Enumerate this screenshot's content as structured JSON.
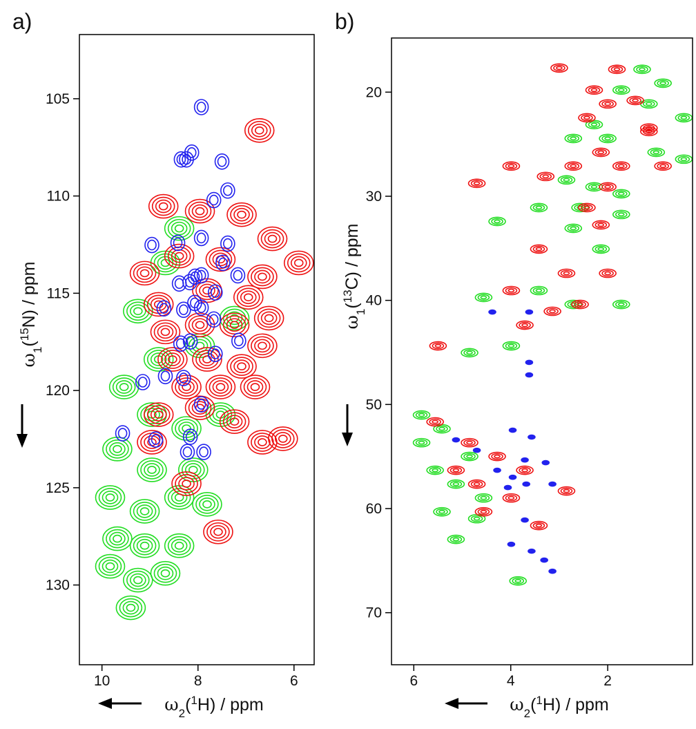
{
  "chart_data": [
    {
      "type": "contour",
      "label": "a)",
      "xlabel_parts": [
        "ω",
        "2",
        "(",
        "1",
        "H) / ppm"
      ],
      "ylabel_parts": [
        "ω",
        "1",
        "(",
        "15",
        "N) / ppm"
      ],
      "xlim": [
        10.47,
        5.58
      ],
      "ylim": [
        101.7,
        134.1
      ],
      "xticks": [
        10,
        8,
        6
      ],
      "yticks": [
        105,
        110,
        115,
        120,
        125,
        130
      ],
      "series": [
        {
          "color": "#22dd22",
          "x": [
            8.68,
            8.39,
            9.25,
            8.82,
            7.96,
            7.24,
            9.54,
            8.96,
            8.24,
            7.53,
            9.68,
            8.96,
            8.1,
            9.83,
            9.11,
            8.39,
            7.81,
            9.68,
            9.11,
            8.39,
            9.25,
            8.68,
            9.4,
            9.83
          ],
          "y": [
            113.44,
            111.67,
            115.92,
            118.4,
            117.7,
            116.28,
            119.82,
            121.24,
            121.95,
            121.24,
            123.01,
            124.08,
            124.08,
            125.5,
            126.21,
            125.5,
            125.85,
            127.62,
            127.98,
            127.98,
            129.75,
            129.4,
            131.17,
            129.04
          ]
        },
        {
          "color": "#ee1111",
          "x": [
            8.72,
            7.96,
            7.09,
            6.45,
            9.11,
            8.39,
            7.53,
            6.66,
            8.82,
            7.81,
            6.95,
            6.52,
            8.68,
            7.96,
            7.24,
            6.66,
            8.53,
            7.81,
            7.09,
            8.24,
            7.53,
            6.81,
            8.82,
            7.96,
            7.24,
            6.66,
            8.96,
            8.24,
            6.23,
            6.72,
            5.9,
            7.58
          ],
          "y": [
            110.53,
            110.78,
            110.96,
            112.2,
            113.97,
            113.09,
            113.26,
            114.15,
            115.57,
            114.86,
            115.21,
            116.28,
            116.99,
            116.63,
            116.63,
            117.7,
            118.4,
            118.4,
            118.76,
            119.82,
            119.82,
            119.82,
            121.24,
            120.89,
            121.6,
            122.66,
            122.66,
            124.79,
            122.48,
            106.63,
            113.44,
            127.27
          ]
        },
        {
          "color": "#2222ee",
          "x": [
            7.93,
            8.13,
            8.24,
            8.35,
            7.5,
            7.38,
            7.67,
            8.96,
            8.42,
            7.93,
            7.38,
            7.48,
            7.17,
            8.17,
            8.39,
            8.06,
            7.93,
            7.64,
            8.71,
            8.3,
            8.07,
            7.93,
            7.67,
            8.36,
            8.16,
            7.64,
            7.15,
            8.68,
            8.3,
            7.93,
            9.15,
            9.57,
            8.88,
            8.16,
            8.22,
            7.88
          ],
          "y": [
            105.43,
            107.77,
            108.12,
            108.12,
            108.23,
            109.72,
            110.21,
            112.52,
            112.41,
            112.16,
            112.45,
            113.44,
            114.08,
            114.43,
            114.5,
            114.15,
            114.08,
            114.96,
            115.78,
            115.85,
            115.5,
            115.74,
            116.35,
            117.59,
            117.48,
            118.12,
            117.45,
            119.26,
            119.36,
            120.71,
            119.57,
            122.2,
            122.52,
            122.38,
            123.16,
            123.16
          ]
        }
      ]
    },
    {
      "type": "contour",
      "label": "b)",
      "xlabel_parts": [
        "ω",
        "2",
        "(",
        "1",
        "H) / ppm"
      ],
      "ylabel_parts": [
        "ω",
        "1",
        "(",
        "13",
        "C) / ppm"
      ],
      "xlim": [
        6.46,
        0.25
      ],
      "ylim": [
        14.8,
        75.0
      ],
      "xticks": [
        6,
        4,
        2
      ],
      "yticks": [
        20,
        30,
        40,
        50,
        60,
        70
      ],
      "series": [
        {
          "color": "#22dd22",
          "x": [
            1.29,
            0.86,
            1.72,
            1.15,
            0.43,
            2.28,
            2.71,
            2.0,
            1.0,
            0.43,
            2.85,
            2.28,
            1.72,
            3.42,
            2.57,
            1.72,
            4.28,
            2.14,
            2.71,
            3.42,
            2.71,
            1.72,
            4.56,
            3.99,
            4.85,
            5.84,
            5.42,
            4.85,
            5.56,
            5.13,
            4.56,
            5.42,
            4.7,
            5.13,
            3.85,
            5.84
          ],
          "y": [
            17.81,
            19.14,
            19.8,
            21.13,
            22.46,
            23.12,
            24.45,
            24.45,
            25.78,
            26.44,
            28.43,
            29.1,
            29.76,
            31.09,
            31.09,
            31.75,
            32.42,
            35.07,
            33.08,
            39.06,
            40.39,
            40.39,
            39.72,
            44.37,
            45.03,
            53.67,
            52.34,
            54.99,
            56.32,
            57.65,
            58.98,
            60.31,
            60.97,
            62.96,
            66.95,
            51.01
          ]
        },
        {
          "color": "#ee1111",
          "x": [
            3.0,
            1.81,
            1.43,
            2.43,
            2.0,
            1.15,
            2.14,
            1.72,
            2.71,
            0.86,
            3.99,
            4.7,
            3.28,
            2.0,
            2.43,
            2.14,
            3.42,
            2.85,
            2.0,
            3.99,
            3.14,
            3.71,
            2.57,
            5.5,
            5.56,
            4.85,
            4.28,
            3.71,
            4.7,
            3.99,
            3.42,
            4.56,
            5.13,
            2.85,
            1.15,
            2.28
          ],
          "y": [
            17.68,
            17.81,
            20.8,
            22.46,
            21.13,
            23.78,
            25.78,
            27.1,
            27.1,
            27.1,
            27.1,
            28.76,
            28.1,
            29.1,
            31.09,
            32.75,
            35.07,
            37.4,
            37.4,
            39.06,
            41.05,
            42.38,
            40.39,
            44.37,
            51.67,
            53.67,
            54.99,
            56.32,
            57.65,
            58.98,
            61.63,
            60.31,
            56.32,
            58.31,
            23.45,
            19.8
          ]
        },
        {
          "color": "#2222ee",
          "x": [
            4.38,
            3.62,
            3.62,
            3.62,
            5.13,
            4.7,
            3.96,
            3.57,
            3.28,
            3.96,
            3.68,
            3.14,
            4.28,
            3.71,
            3.99,
            3.57,
            3.31,
            3.14,
            3.71,
            4.06
          ],
          "y": [
            41.12,
            41.12,
            45.96,
            47.16,
            53.4,
            54.4,
            52.47,
            53.13,
            55.59,
            56.99,
            57.65,
            57.65,
            56.32,
            61.1,
            63.43,
            64.09,
            64.95,
            66.02,
            55.33,
            57.98
          ]
        }
      ]
    }
  ]
}
